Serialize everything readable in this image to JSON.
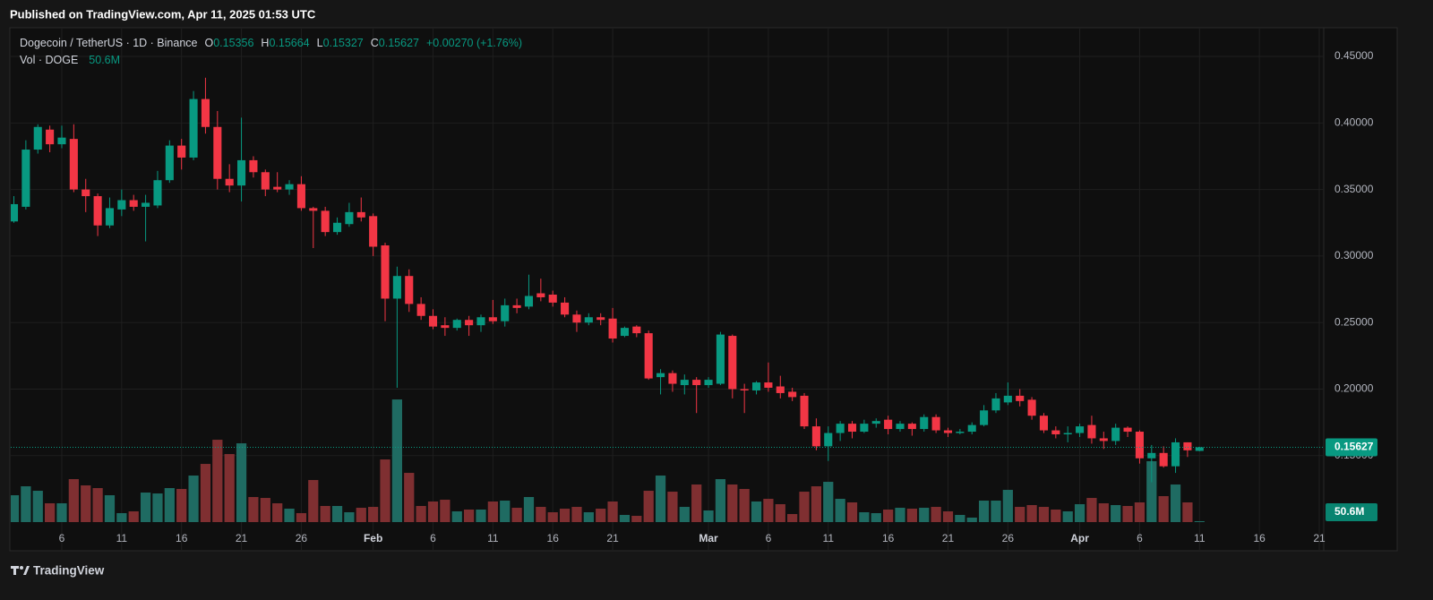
{
  "header": {
    "published": "Published on TradingView.com, Apr 11, 2025 01:53 UTC"
  },
  "footer": {
    "brand": "TradingView"
  },
  "chart_data": {
    "type": "candlestick",
    "title": "Dogecoin / TetherUS · 1D · Binance",
    "legend_labels": [
      "O",
      "H",
      "L",
      "C"
    ],
    "change": "+0.00270 (+1.76%)",
    "volume_title": "Vol · DOGE",
    "up_color": "#089981",
    "down_color": "#f23645",
    "volume_up_color": "#1f6b62",
    "volume_down_color": "#7f2f31",
    "grid": true,
    "x": [
      "2025-01-02",
      "2025-01-03",
      "2025-01-04",
      "2025-01-05",
      "2025-01-06",
      "2025-01-07",
      "2025-01-08",
      "2025-01-09",
      "2025-01-10",
      "2025-01-11",
      "2025-01-12",
      "2025-01-13",
      "2025-01-14",
      "2025-01-15",
      "2025-01-16",
      "2025-01-17",
      "2025-01-18",
      "2025-01-19",
      "2025-01-20",
      "2025-01-21",
      "2025-01-22",
      "2025-01-23",
      "2025-01-24",
      "2025-01-25",
      "2025-01-26",
      "2025-01-27",
      "2025-01-28",
      "2025-01-29",
      "2025-01-30",
      "2025-01-31",
      "2025-02-01",
      "2025-02-02",
      "2025-02-03",
      "2025-02-04",
      "2025-02-05",
      "2025-02-06",
      "2025-02-07",
      "2025-02-08",
      "2025-02-09",
      "2025-02-10",
      "2025-02-11",
      "2025-02-12",
      "2025-02-13",
      "2025-02-14",
      "2025-02-15",
      "2025-02-16",
      "2025-02-17",
      "2025-02-18",
      "2025-02-19",
      "2025-02-20",
      "2025-02-21",
      "2025-02-22",
      "2025-02-23",
      "2025-02-24",
      "2025-02-25",
      "2025-02-26",
      "2025-02-27",
      "2025-02-28",
      "2025-03-01",
      "2025-03-02",
      "2025-03-03",
      "2025-03-04",
      "2025-03-05",
      "2025-03-06",
      "2025-03-07",
      "2025-03-08",
      "2025-03-09",
      "2025-03-10",
      "2025-03-11",
      "2025-03-12",
      "2025-03-13",
      "2025-03-14",
      "2025-03-15",
      "2025-03-16",
      "2025-03-17",
      "2025-03-18",
      "2025-03-19",
      "2025-03-20",
      "2025-03-21",
      "2025-03-22",
      "2025-03-23",
      "2025-03-24",
      "2025-03-25",
      "2025-03-26",
      "2025-03-27",
      "2025-03-28",
      "2025-03-29",
      "2025-03-30",
      "2025-03-31",
      "2025-04-01",
      "2025-04-02",
      "2025-04-03",
      "2025-04-04",
      "2025-04-05",
      "2025-04-06",
      "2025-04-07",
      "2025-04-08",
      "2025-04-09",
      "2025-04-10",
      "2025-04-11"
    ],
    "open": [
      0.326,
      0.337,
      0.38,
      0.395,
      0.384,
      0.388,
      0.35,
      0.345,
      0.323,
      0.335,
      0.342,
      0.337,
      0.338,
      0.357,
      0.383,
      0.374,
      0.418,
      0.397,
      0.358,
      0.353,
      0.372,
      0.363,
      0.352,
      0.35,
      0.354,
      0.336,
      0.334,
      0.318,
      0.324,
      0.333,
      0.33,
      0.308,
      0.268,
      0.285,
      0.264,
      0.255,
      0.248,
      0.246,
      0.252,
      0.248,
      0.254,
      0.251,
      0.263,
      0.262,
      0.272,
      0.271,
      0.265,
      0.256,
      0.25,
      0.254,
      0.253,
      0.24,
      0.247,
      0.242,
      0.209,
      0.212,
      0.203,
      0.207,
      0.203,
      0.204,
      0.24,
      0.2,
      0.199,
      0.205,
      0.202,
      0.198,
      0.195,
      0.172,
      0.157,
      0.167,
      0.174,
      0.168,
      0.174,
      0.177,
      0.17,
      0.174,
      0.17,
      0.179,
      0.169,
      0.167,
      0.168,
      0.173,
      0.184,
      0.19,
      0.195,
      0.192,
      0.18,
      0.169,
      0.166,
      0.167,
      0.173,
      0.163,
      0.161,
      0.171,
      0.168,
      0.148,
      0.152,
      0.142,
      0.16,
      0.15356
    ],
    "high": [
      0.345,
      0.387,
      0.399,
      0.398,
      0.398,
      0.399,
      0.358,
      0.347,
      0.344,
      0.35,
      0.346,
      0.346,
      0.364,
      0.387,
      0.388,
      0.424,
      0.434,
      0.409,
      0.369,
      0.404,
      0.375,
      0.365,
      0.363,
      0.357,
      0.36,
      0.337,
      0.337,
      0.329,
      0.34,
      0.344,
      0.332,
      0.31,
      0.292,
      0.29,
      0.269,
      0.26,
      0.254,
      0.253,
      0.255,
      0.256,
      0.267,
      0.268,
      0.268,
      0.286,
      0.283,
      0.274,
      0.269,
      0.259,
      0.257,
      0.257,
      0.261,
      0.247,
      0.248,
      0.244,
      0.215,
      0.214,
      0.211,
      0.209,
      0.209,
      0.243,
      0.241,
      0.204,
      0.206,
      0.22,
      0.21,
      0.201,
      0.197,
      0.178,
      0.172,
      0.176,
      0.176,
      0.177,
      0.178,
      0.18,
      0.176,
      0.175,
      0.181,
      0.181,
      0.171,
      0.17,
      0.175,
      0.188,
      0.197,
      0.205,
      0.2,
      0.194,
      0.182,
      0.172,
      0.172,
      0.174,
      0.18,
      0.168,
      0.174,
      0.172,
      0.169,
      0.158,
      0.157,
      0.163,
      0.16,
      0.15664
    ],
    "low": [
      0.325,
      0.335,
      0.377,
      0.378,
      0.381,
      0.348,
      0.333,
      0.315,
      0.321,
      0.33,
      0.334,
      0.311,
      0.336,
      0.355,
      0.365,
      0.372,
      0.392,
      0.35,
      0.348,
      0.341,
      0.359,
      0.345,
      0.348,
      0.346,
      0.334,
      0.306,
      0.315,
      0.316,
      0.322,
      0.326,
      0.3,
      0.251,
      0.201,
      0.258,
      0.252,
      0.245,
      0.24,
      0.244,
      0.24,
      0.243,
      0.249,
      0.247,
      0.257,
      0.26,
      0.266,
      0.262,
      0.254,
      0.243,
      0.248,
      0.248,
      0.235,
      0.239,
      0.239,
      0.207,
      0.196,
      0.198,
      0.196,
      0.182,
      0.201,
      0.203,
      0.193,
      0.182,
      0.196,
      0.198,
      0.193,
      0.191,
      0.17,
      0.154,
      0.146,
      0.161,
      0.163,
      0.167,
      0.171,
      0.166,
      0.168,
      0.165,
      0.168,
      0.167,
      0.164,
      0.166,
      0.166,
      0.172,
      0.182,
      0.188,
      0.187,
      0.177,
      0.167,
      0.163,
      0.16,
      0.164,
      0.159,
      0.155,
      0.158,
      0.164,
      0.144,
      0.13,
      0.141,
      0.137,
      0.149,
      0.15327
    ],
    "close": [
      0.339,
      0.38,
      0.397,
      0.384,
      0.389,
      0.35,
      0.345,
      0.323,
      0.336,
      0.342,
      0.337,
      0.34,
      0.357,
      0.383,
      0.374,
      0.418,
      0.397,
      0.358,
      0.353,
      0.372,
      0.363,
      0.35,
      0.35,
      0.354,
      0.336,
      0.334,
      0.318,
      0.325,
      0.333,
      0.329,
      0.307,
      0.268,
      0.285,
      0.264,
      0.255,
      0.247,
      0.246,
      0.252,
      0.248,
      0.254,
      0.251,
      0.263,
      0.261,
      0.27,
      0.269,
      0.265,
      0.256,
      0.25,
      0.254,
      0.252,
      0.238,
      0.246,
      0.242,
      0.208,
      0.212,
      0.204,
      0.207,
      0.203,
      0.207,
      0.241,
      0.2,
      0.199,
      0.205,
      0.201,
      0.197,
      0.194,
      0.172,
      0.157,
      0.167,
      0.174,
      0.168,
      0.174,
      0.176,
      0.17,
      0.174,
      0.17,
      0.179,
      0.169,
      0.167,
      0.168,
      0.173,
      0.184,
      0.193,
      0.195,
      0.191,
      0.18,
      0.169,
      0.166,
      0.167,
      0.172,
      0.163,
      0.161,
      0.171,
      0.168,
      0.148,
      0.152,
      0.142,
      0.16,
      0.154,
      0.15627
    ],
    "volume": {
      "values": [
        1500,
        2000,
        1750,
        1050,
        1050,
        2400,
        2050,
        1900,
        1500,
        500,
        600,
        1650,
        1600,
        1900,
        1850,
        2600,
        3250,
        4600,
        3800,
        4400,
        1400,
        1350,
        1050,
        750,
        500,
        2350,
        900,
        900,
        550,
        800,
        850,
        3500,
        6850,
        2750,
        900,
        1150,
        1250,
        600,
        700,
        700,
        1150,
        1200,
        800,
        1400,
        850,
        550,
        750,
        850,
        550,
        750,
        1150,
        400,
        350,
        1750,
        2600,
        1700,
        850,
        2100,
        650,
        2400,
        2100,
        1850,
        1150,
        1300,
        1000,
        450,
        1700,
        2000,
        2250,
        1300,
        1100,
        550,
        500,
        700,
        800,
        750,
        800,
        850,
        600,
        400,
        250,
        1200,
        1200,
        1800,
        850,
        950,
        850,
        700,
        600,
        1000,
        1350,
        1050,
        950,
        900,
        1100,
        3400,
        1450,
        2100,
        1100,
        50.6
      ],
      "value_labels": [
        null,
        null,
        null,
        null,
        null,
        null,
        null,
        null,
        null,
        null,
        null,
        null,
        null,
        null,
        null,
        null,
        null,
        null,
        null,
        null,
        null,
        null,
        null,
        null,
        null,
        null,
        null,
        null,
        null,
        null,
        null,
        null,
        null,
        null,
        null,
        null,
        null,
        null,
        null,
        null,
        null,
        null,
        null,
        null,
        null,
        null,
        null,
        null,
        null,
        null,
        null,
        null,
        null,
        null,
        null,
        null,
        null,
        null,
        null,
        null,
        null,
        null,
        null,
        null,
        null,
        null,
        null,
        null,
        null,
        null,
        null,
        null,
        null,
        null,
        null,
        null,
        null,
        null,
        null,
        null,
        null,
        null,
        null,
        null,
        null,
        null,
        null,
        null,
        null,
        null,
        null,
        null,
        null,
        null,
        null,
        null,
        null,
        null,
        null,
        "50.6M"
      ],
      "vlim": [
        0,
        27500
      ]
    },
    "xlim": [
      "2025-01-02",
      "2025-04-21"
    ],
    "xticks": [
      {
        "value": "2025-01-06",
        "label": "6"
      },
      {
        "value": "2025-01-11",
        "label": "11"
      },
      {
        "value": "2025-01-16",
        "label": "16"
      },
      {
        "value": "2025-01-21",
        "label": "21"
      },
      {
        "value": "2025-01-26",
        "label": "26"
      },
      {
        "value": "2025-02-01",
        "label": "Feb"
      },
      {
        "value": "2025-02-06",
        "label": "6"
      },
      {
        "value": "2025-02-11",
        "label": "11"
      },
      {
        "value": "2025-02-16",
        "label": "16"
      },
      {
        "value": "2025-02-21",
        "label": "21"
      },
      {
        "value": "2025-03-01",
        "label": "Mar"
      },
      {
        "value": "2025-03-06",
        "label": "6"
      },
      {
        "value": "2025-03-11",
        "label": "11"
      },
      {
        "value": "2025-03-16",
        "label": "16"
      },
      {
        "value": "2025-03-21",
        "label": "21"
      },
      {
        "value": "2025-03-26",
        "label": "26"
      },
      {
        "value": "2025-04-01",
        "label": "Apr"
      },
      {
        "value": "2025-04-06",
        "label": "6"
      },
      {
        "value": "2025-04-11",
        "label": "11"
      },
      {
        "value": "2025-04-16",
        "label": "16"
      },
      {
        "value": "2025-04-21",
        "label": "21"
      }
    ],
    "ylim": [
      0.08,
      0.47
    ],
    "yticks": [
      {
        "value": 0.15,
        "label": "0.15000"
      },
      {
        "value": 0.2,
        "label": "0.20000"
      },
      {
        "value": 0.25,
        "label": "0.25000"
      },
      {
        "value": 0.3,
        "label": "0.30000"
      },
      {
        "value": 0.35,
        "label": "0.35000"
      },
      {
        "value": 0.4,
        "label": "0.40000"
      },
      {
        "value": 0.45,
        "label": "0.45000"
      }
    ]
  }
}
